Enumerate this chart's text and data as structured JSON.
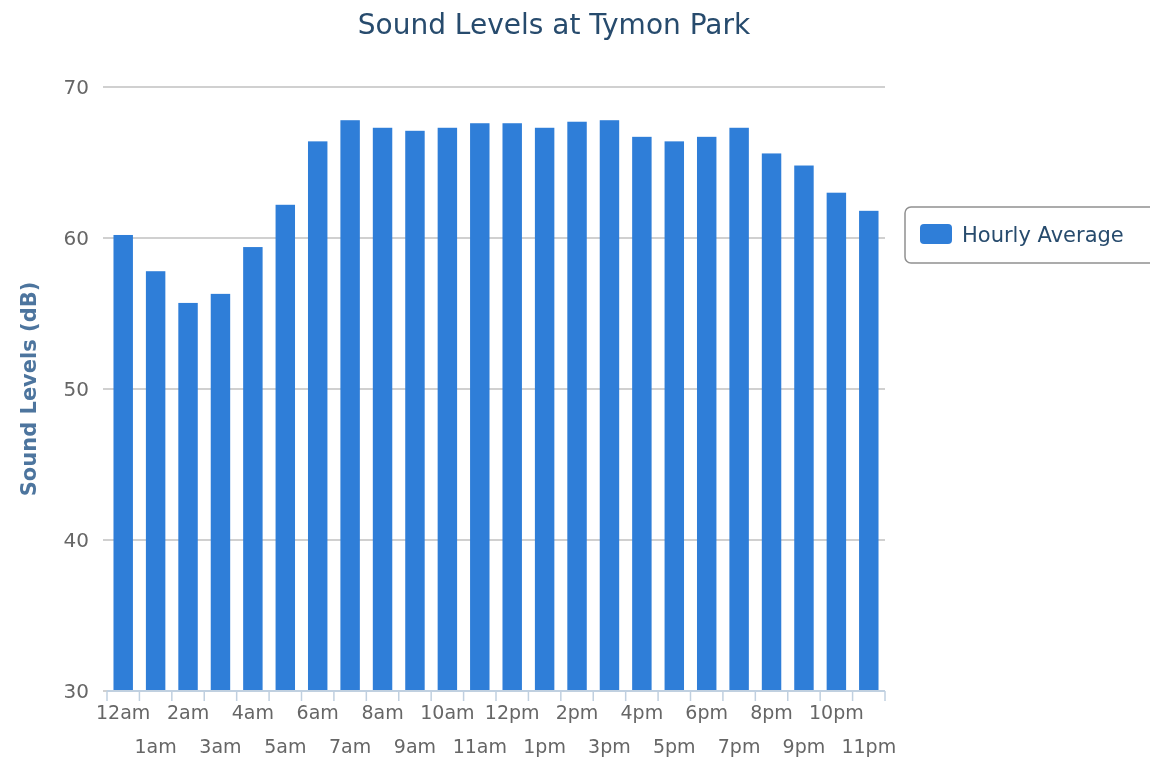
{
  "chart_data": {
    "type": "bar",
    "title": "Sound Levels at Tymon Park",
    "ylabel": "Sound Levels (dB)",
    "categories": [
      "12am",
      "1am",
      "2am",
      "3am",
      "4am",
      "5am",
      "6am",
      "7am",
      "8am",
      "9am",
      "10am",
      "11am",
      "12pm",
      "1pm",
      "2pm",
      "3pm",
      "4pm",
      "5pm",
      "6pm",
      "7pm",
      "8pm",
      "9pm",
      "10pm",
      "11pm"
    ],
    "series": [
      {
        "name": "Hourly Average",
        "color": "#2f7ed8",
        "values": [
          60.2,
          57.8,
          55.7,
          56.3,
          59.4,
          62.2,
          66.4,
          67.8,
          67.3,
          67.1,
          67.3,
          67.6,
          67.6,
          67.3,
          67.7,
          67.8,
          66.7,
          66.4,
          66.7,
          67.3,
          65.6,
          64.8,
          63.0,
          61.8
        ]
      }
    ],
    "ylim": [
      30,
      70
    ],
    "yticks": [
      30,
      40,
      50,
      60,
      70
    ],
    "grid": "y",
    "legend": "right"
  }
}
